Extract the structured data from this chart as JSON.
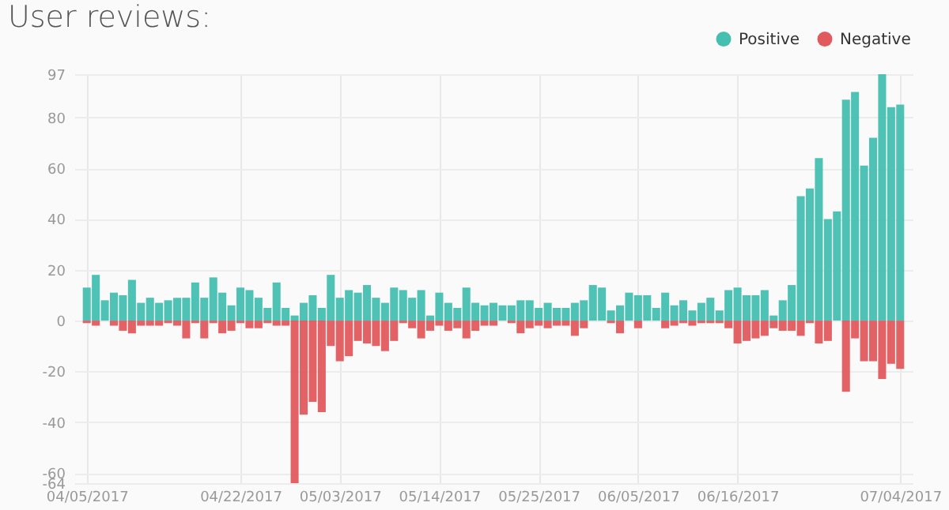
{
  "chart_data": {
    "type": "bar",
    "title": "User reviews:",
    "x": [
      "2017-04-05",
      "2017-04-06",
      "2017-04-07",
      "2017-04-08",
      "2017-04-09",
      "2017-04-10",
      "2017-04-11",
      "2017-04-12",
      "2017-04-13",
      "2017-04-14",
      "2017-04-15",
      "2017-04-16",
      "2017-04-17",
      "2017-04-18",
      "2017-04-19",
      "2017-04-20",
      "2017-04-21",
      "2017-04-22",
      "2017-04-23",
      "2017-04-24",
      "2017-04-25",
      "2017-04-26",
      "2017-04-27",
      "2017-04-28",
      "2017-04-29",
      "2017-04-30",
      "2017-05-01",
      "2017-05-02",
      "2017-05-03",
      "2017-05-04",
      "2017-05-05",
      "2017-05-06",
      "2017-05-07",
      "2017-05-08",
      "2017-05-09",
      "2017-05-10",
      "2017-05-11",
      "2017-05-12",
      "2017-05-13",
      "2017-05-14",
      "2017-05-15",
      "2017-05-16",
      "2017-05-17",
      "2017-05-18",
      "2017-05-19",
      "2017-05-20",
      "2017-05-21",
      "2017-05-22",
      "2017-05-23",
      "2017-05-24",
      "2017-05-25",
      "2017-05-26",
      "2017-05-27",
      "2017-05-28",
      "2017-05-29",
      "2017-05-30",
      "2017-05-31",
      "2017-06-01",
      "2017-06-02",
      "2017-06-03",
      "2017-06-04",
      "2017-06-05",
      "2017-06-06",
      "2017-06-07",
      "2017-06-08",
      "2017-06-09",
      "2017-06-10",
      "2017-06-11",
      "2017-06-12",
      "2017-06-13",
      "2017-06-14",
      "2017-06-15",
      "2017-06-16",
      "2017-06-17",
      "2017-06-18",
      "2017-06-19",
      "2017-06-20",
      "2017-06-21",
      "2017-06-22",
      "2017-06-23",
      "2017-06-24",
      "2017-06-25",
      "2017-06-26",
      "2017-06-27",
      "2017-06-28",
      "2017-06-29",
      "2017-06-30",
      "2017-07-01",
      "2017-07-02",
      "2017-07-03",
      "2017-07-04"
    ],
    "series": [
      {
        "name": "Positive",
        "color": "#45bfb0",
        "values": [
          13,
          18,
          8,
          11,
          10,
          16,
          7,
          9,
          7,
          8,
          9,
          9,
          15,
          9,
          17,
          11,
          6,
          13,
          12,
          9,
          5,
          15,
          5,
          2,
          7,
          10,
          5,
          18,
          9,
          12,
          11,
          14,
          9,
          7,
          13,
          12,
          9,
          12,
          2,
          11,
          7,
          5,
          13,
          7,
          6,
          7,
          6,
          6,
          8,
          8,
          5,
          7,
          5,
          5,
          7,
          8,
          14,
          13,
          4,
          6,
          11,
          10,
          10,
          5,
          11,
          6,
          8,
          4,
          7,
          9,
          4,
          12,
          13,
          10,
          10,
          12,
          2,
          8,
          14,
          49,
          52,
          64,
          40,
          43,
          87,
          90,
          61,
          72,
          97,
          84,
          85
        ]
      },
      {
        "name": "Negative",
        "color": "#e05a5e",
        "values": [
          -1,
          -2,
          0,
          -2,
          -4,
          -5,
          -2,
          -2,
          -2,
          -1,
          -2,
          -7,
          -1,
          -7,
          -1,
          -5,
          -4,
          -1,
          -3,
          -3,
          -1,
          -2,
          -2,
          -64,
          -37,
          -32,
          -36,
          -10,
          -16,
          -14,
          -8,
          -9,
          -10,
          -12,
          -8,
          -1,
          -3,
          -7,
          -4,
          -2,
          -4,
          -3,
          -7,
          -4,
          -2,
          -2,
          0,
          -1,
          -5,
          -3,
          -2,
          -3,
          -2,
          -2,
          -6,
          -3,
          0,
          0,
          -1,
          -5,
          0,
          -3,
          0,
          0,
          -3,
          -2,
          -1,
          -2,
          -1,
          -1,
          -1,
          -3,
          -9,
          -8,
          -7,
          -6,
          -3,
          -4,
          -4,
          -6,
          -1,
          -9,
          -8,
          0,
          -28,
          -7,
          -16,
          -16,
          -23,
          -17,
          -19
        ]
      }
    ],
    "xlim": [
      "2017-04-04T12:00",
      "2017-07-04T12:00"
    ],
    "xticks": [
      {
        "value": "2017-04-05",
        "label": "04/05/2017"
      },
      {
        "value": "2017-04-22",
        "label": "04/22/2017"
      },
      {
        "value": "2017-05-03",
        "label": "05/03/2017"
      },
      {
        "value": "2017-05-14",
        "label": "05/14/2017"
      },
      {
        "value": "2017-05-25",
        "label": "05/25/2017"
      },
      {
        "value": "2017-06-05",
        "label": "06/05/2017"
      },
      {
        "value": "2017-06-16",
        "label": "06/16/2017"
      },
      {
        "value": "2017-07-04",
        "label": "07/04/2017"
      }
    ],
    "ylim": [
      -64,
      97
    ],
    "yticks": [
      -64,
      -60,
      -40,
      -20,
      0,
      20,
      40,
      60,
      80,
      97
    ],
    "grid": true,
    "legend": "top right"
  }
}
